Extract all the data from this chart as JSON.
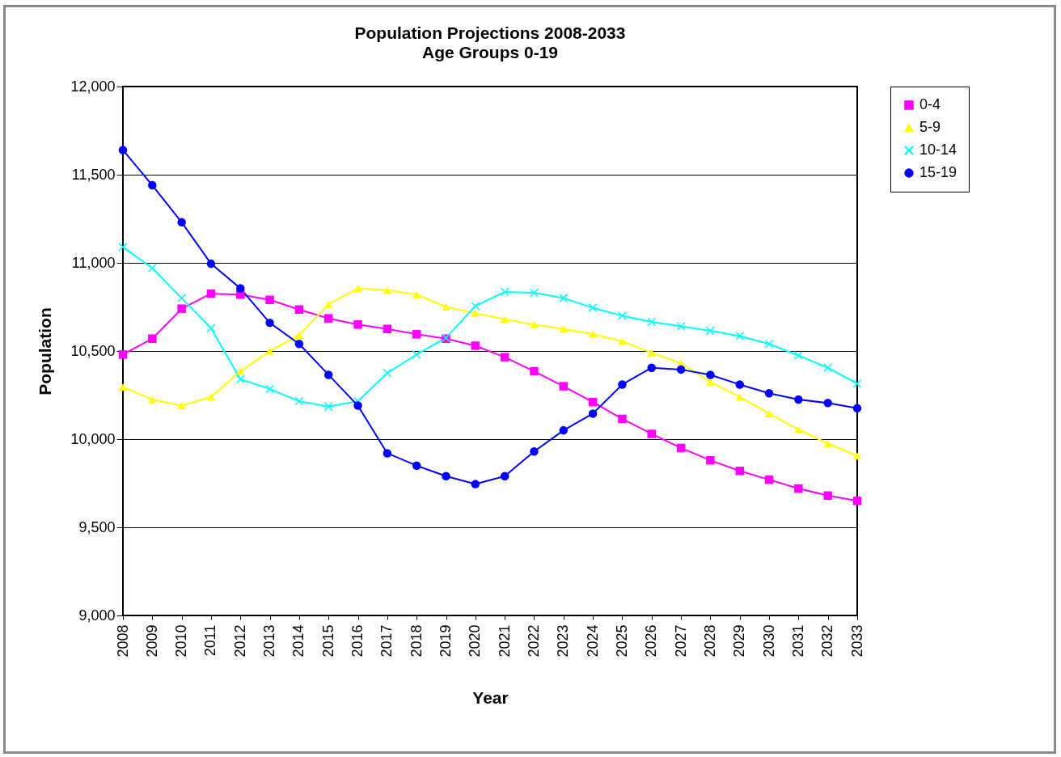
{
  "chart_data": {
    "type": "line",
    "title": "Population Projections 2008-2033",
    "subtitle": "Age Groups 0-19",
    "xlabel": "Year",
    "ylabel": "Population",
    "categories": [
      "2008",
      "2009",
      "2010",
      "2011",
      "2012",
      "2013",
      "2014",
      "2015",
      "2016",
      "2017",
      "2018",
      "2019",
      "2020",
      "2021",
      "2022",
      "2023",
      "2024",
      "2025",
      "2026",
      "2027",
      "2028",
      "2029",
      "2030",
      "2031",
      "2032",
      "2033"
    ],
    "ylim": [
      9000,
      12000
    ],
    "yticks": [
      {
        "value": 9000,
        "label": "9,000"
      },
      {
        "value": 9500,
        "label": "9,500"
      },
      {
        "value": 10000,
        "label": "10,000"
      },
      {
        "value": 10500,
        "label": "10,500"
      },
      {
        "value": 11000,
        "label": "11,000"
      },
      {
        "value": 11500,
        "label": "11,500"
      },
      {
        "value": 12000,
        "label": "12,000"
      }
    ],
    "grid": "y",
    "legend": "right",
    "series": [
      {
        "name": "0-4",
        "color": "#ff00ff",
        "marker": "square",
        "values": [
          10480,
          10570,
          10740,
          10825,
          10820,
          10790,
          10735,
          10685,
          10650,
          10625,
          10595,
          10570,
          10530,
          10465,
          10385,
          10300,
          10210,
          10115,
          10030,
          9950,
          9880,
          9820,
          9770,
          9720,
          9680,
          9650
        ]
      },
      {
        "name": "5-9",
        "color": "#ffff00",
        "marker": "triangle",
        "values": [
          10295,
          10225,
          10190,
          10240,
          10385,
          10500,
          10590,
          10765,
          10855,
          10845,
          10820,
          10750,
          10715,
          10680,
          10650,
          10625,
          10595,
          10555,
          10490,
          10430,
          10325,
          10240,
          10145,
          10055,
          9975,
          9905
        ]
      },
      {
        "name": "10-14",
        "color": "#00ffff",
        "marker": "cross",
        "values": [
          11090,
          10970,
          10800,
          10630,
          10340,
          10285,
          10215,
          10185,
          10215,
          10375,
          10480,
          10575,
          10755,
          10835,
          10830,
          10800,
          10745,
          10700,
          10665,
          10640,
          10615,
          10585,
          10540,
          10475,
          10405,
          10315
        ]
      },
      {
        "name": "15-19",
        "color": "#0000ff",
        "marker": "circle",
        "values": [
          11640,
          11440,
          11230,
          10995,
          10855,
          10660,
          10540,
          10365,
          10190,
          9920,
          9850,
          9790,
          9745,
          9790,
          9930,
          10050,
          10145,
          10310,
          10405,
          10395,
          10365,
          10310,
          10260,
          10225,
          10205,
          10175
        ]
      }
    ]
  }
}
